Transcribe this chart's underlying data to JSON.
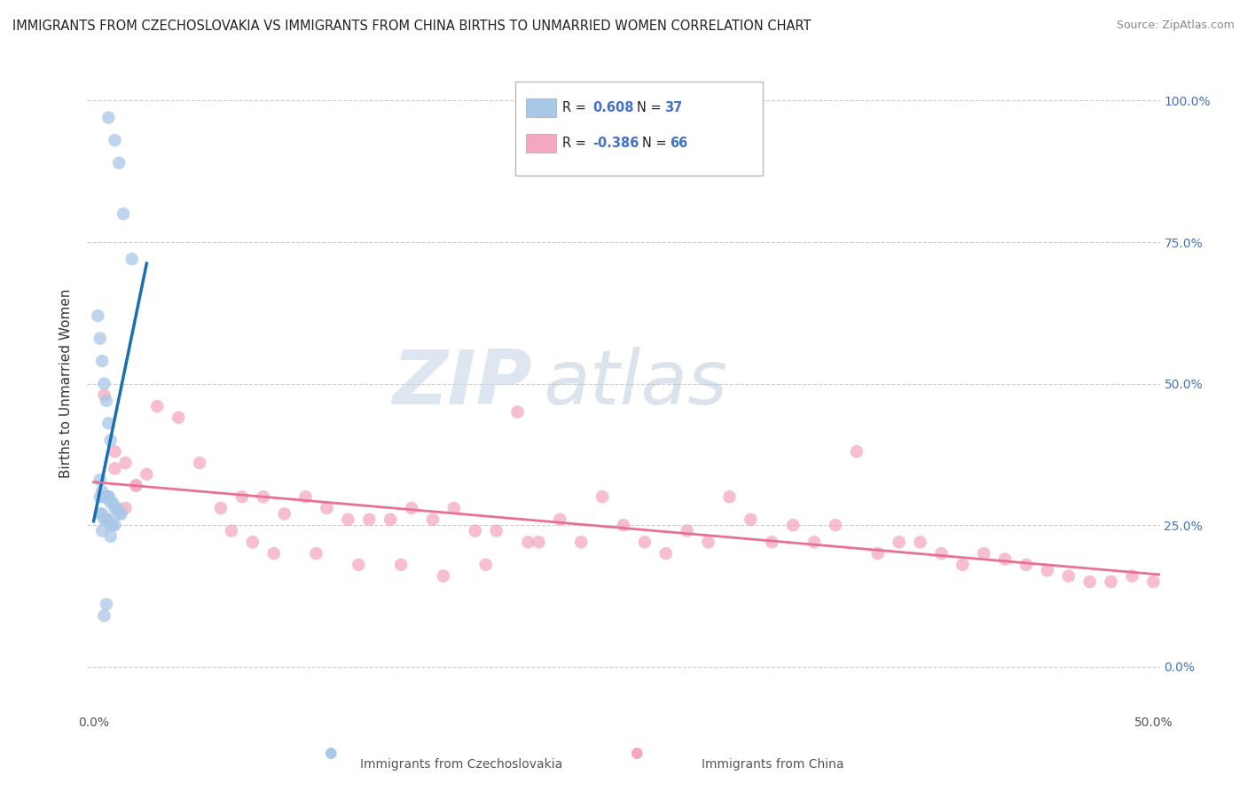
{
  "title": "IMMIGRANTS FROM CZECHOSLOVAKIA VS IMMIGRANTS FROM CHINA BIRTHS TO UNMARRIED WOMEN CORRELATION CHART",
  "source": "Source: ZipAtlas.com",
  "ylabel": "Births to Unmarried Women",
  "legend_1_label": "Immigrants from Czechoslovakia",
  "legend_2_label": "Immigrants from China",
  "R1": "0.608",
  "N1": "37",
  "R2": "-0.386",
  "N2": "66",
  "color_blue": "#a8c8e8",
  "color_pink": "#f4a8c0",
  "line_blue": "#1a6faf",
  "line_pink": "#e87090",
  "yticks": [
    "0.0%",
    "25.0%",
    "50.0%",
    "75.0%",
    "100.0%"
  ],
  "ytick_vals": [
    0.0,
    0.25,
    0.5,
    0.75,
    1.0
  ],
  "xlim": [
    -0.003,
    0.503
  ],
  "ylim": [
    -0.08,
    1.08
  ],
  "watermark_zip": "ZIP",
  "watermark_atlas": "atlas",
  "blue_x": [
    0.007,
    0.01,
    0.012,
    0.014,
    0.018,
    0.002,
    0.003,
    0.004,
    0.005,
    0.006,
    0.007,
    0.008,
    0.003,
    0.004,
    0.005,
    0.006,
    0.007,
    0.008,
    0.009,
    0.01,
    0.011,
    0.012,
    0.013,
    0.003,
    0.004,
    0.005,
    0.006,
    0.007,
    0.008,
    0.009,
    0.01,
    0.006,
    0.005,
    0.007,
    0.004,
    0.008,
    0.003
  ],
  "blue_y": [
    0.97,
    0.93,
    0.89,
    0.8,
    0.72,
    0.62,
    0.58,
    0.54,
    0.5,
    0.47,
    0.43,
    0.4,
    0.33,
    0.31,
    0.3,
    0.3,
    0.3,
    0.29,
    0.29,
    0.28,
    0.28,
    0.27,
    0.27,
    0.27,
    0.27,
    0.26,
    0.26,
    0.26,
    0.25,
    0.25,
    0.25,
    0.11,
    0.09,
    0.3,
    0.24,
    0.23,
    0.3
  ],
  "pink_x": [
    0.005,
    0.01,
    0.015,
    0.02,
    0.03,
    0.04,
    0.005,
    0.01,
    0.015,
    0.02,
    0.025,
    0.06,
    0.07,
    0.08,
    0.09,
    0.1,
    0.11,
    0.12,
    0.13,
    0.14,
    0.15,
    0.16,
    0.17,
    0.18,
    0.19,
    0.2,
    0.21,
    0.22,
    0.23,
    0.24,
    0.25,
    0.26,
    0.27,
    0.28,
    0.29,
    0.3,
    0.31,
    0.32,
    0.33,
    0.34,
    0.35,
    0.36,
    0.37,
    0.38,
    0.39,
    0.4,
    0.41,
    0.42,
    0.43,
    0.44,
    0.45,
    0.46,
    0.47,
    0.48,
    0.49,
    0.5,
    0.05,
    0.065,
    0.075,
    0.085,
    0.105,
    0.125,
    0.145,
    0.165,
    0.185,
    0.205
  ],
  "pink_y": [
    0.3,
    0.35,
    0.28,
    0.32,
    0.46,
    0.44,
    0.48,
    0.38,
    0.36,
    0.32,
    0.34,
    0.28,
    0.3,
    0.3,
    0.27,
    0.3,
    0.28,
    0.26,
    0.26,
    0.26,
    0.28,
    0.26,
    0.28,
    0.24,
    0.24,
    0.45,
    0.22,
    0.26,
    0.22,
    0.3,
    0.25,
    0.22,
    0.2,
    0.24,
    0.22,
    0.3,
    0.26,
    0.22,
    0.25,
    0.22,
    0.25,
    0.38,
    0.2,
    0.22,
    0.22,
    0.2,
    0.18,
    0.2,
    0.19,
    0.18,
    0.17,
    0.16,
    0.15,
    0.15,
    0.16,
    0.15,
    0.36,
    0.24,
    0.22,
    0.2,
    0.2,
    0.18,
    0.18,
    0.16,
    0.18,
    0.22
  ]
}
